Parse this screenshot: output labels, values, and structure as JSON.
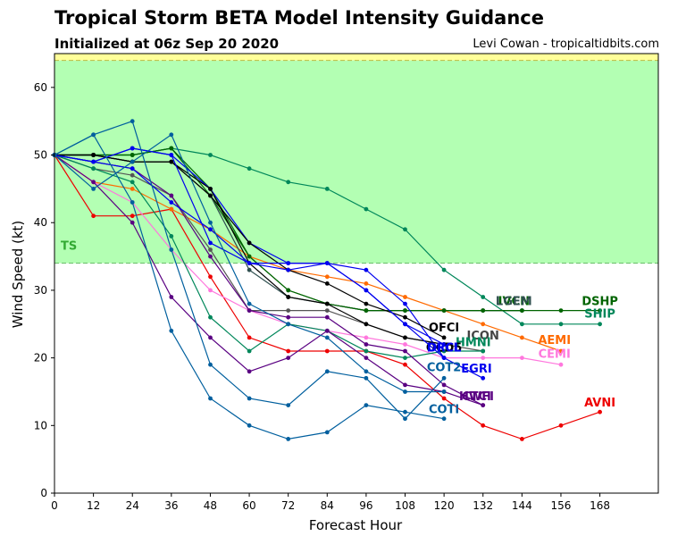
{
  "header": {
    "title": "Tropical Storm BETA Model Intensity Guidance",
    "subtitle": "Initialized at 06z Sep 20 2020",
    "credit": "Levi Cowan - tropicaltidbits.com"
  },
  "chart_data": {
    "type": "line",
    "xlabel": "Forecast Hour",
    "ylabel": "Wind Speed (kt)",
    "xlim": [
      0,
      186
    ],
    "ylim": [
      0,
      65
    ],
    "xticks": [
      0,
      12,
      24,
      36,
      48,
      60,
      72,
      84,
      96,
      108,
      120,
      132,
      144,
      156,
      168
    ],
    "yticks": [
      0,
      10,
      20,
      30,
      40,
      50,
      60
    ],
    "bands": [
      {
        "label": "TS",
        "from": 34,
        "to": 64,
        "color": "#b3ffb3",
        "edge": "#66bb66",
        "label_color": "#33aa33"
      },
      {
        "label": "",
        "from": 64,
        "to": 65,
        "color": "#ffff99",
        "edge": "#bbbb44",
        "label_color": "#999933"
      }
    ],
    "series": [
      {
        "name": "DSHP",
        "color": "#006400",
        "x": [
          0,
          12,
          24,
          36,
          48,
          60,
          72,
          84,
          96,
          108,
          120,
          132,
          144,
          156,
          168
        ],
        "y": [
          50,
          50,
          50,
          51,
          44,
          35,
          30,
          28,
          27,
          27,
          27,
          27,
          27,
          27,
          27
        ]
      },
      {
        "name": "SHIP",
        "color": "#00875a",
        "x": [
          0,
          12,
          24,
          36,
          48,
          60,
          72,
          84,
          96,
          108,
          120,
          132,
          144,
          156,
          168
        ],
        "y": [
          50,
          50,
          50,
          51,
          50,
          48,
          46,
          45,
          42,
          39,
          33,
          29,
          25,
          25,
          25
        ]
      },
      {
        "name": "AVNI",
        "color": "#ee0000",
        "x": [
          0,
          12,
          24,
          36,
          48,
          60,
          72,
          84,
          96,
          108,
          120,
          132,
          144,
          156,
          168
        ],
        "y": [
          50,
          41,
          41,
          42,
          32,
          23,
          21,
          21,
          21,
          19,
          14,
          10,
          8,
          10,
          12
        ]
      },
      {
        "name": "AEMI",
        "color": "#ff6a00",
        "x": [
          0,
          12,
          24,
          36,
          48,
          60,
          72,
          84,
          96,
          108,
          120,
          132,
          144,
          156
        ],
        "y": [
          50,
          46,
          45,
          42,
          39,
          35,
          33,
          32,
          31,
          29,
          27,
          25,
          23,
          21
        ]
      },
      {
        "name": "CEMI",
        "color": "#ff77dd",
        "x": [
          0,
          12,
          24,
          36,
          48,
          60,
          72,
          84,
          96,
          108,
          120,
          132,
          144,
          156
        ],
        "y": [
          50,
          46,
          43,
          36,
          30,
          27,
          25,
          24,
          23,
          22,
          20,
          20,
          20,
          19
        ]
      },
      {
        "name": "LGEM",
        "color": "#2f4f4f",
        "x": [
          0,
          12,
          24,
          36,
          48,
          60,
          72,
          84,
          96,
          108,
          120,
          132,
          144
        ],
        "y": [
          50,
          50,
          49,
          49,
          44,
          33,
          29,
          28,
          27,
          27,
          27,
          27,
          27
        ]
      },
      {
        "name": "IVCN",
        "color": "#006400",
        "x": [
          0,
          12,
          24,
          36,
          48,
          60,
          72,
          84,
          96,
          108,
          120,
          132,
          144
        ],
        "y": [
          50,
          50,
          50,
          51,
          45,
          35,
          30,
          28,
          27,
          27,
          27,
          27,
          27
        ]
      },
      {
        "name": "ICON",
        "color": "#555555",
        "x": [
          0,
          12,
          24,
          36,
          48,
          60,
          72,
          84,
          96,
          108,
          120,
          132
        ],
        "y": [
          50,
          48,
          47,
          44,
          36,
          27,
          27,
          27,
          25,
          23,
          22,
          21
        ]
      },
      {
        "name": "HMNI",
        "color": "#00875a",
        "x": [
          0,
          12,
          24,
          36,
          48,
          60,
          72,
          84,
          96,
          108,
          120,
          132
        ],
        "y": [
          50,
          48,
          46,
          38,
          26,
          21,
          25,
          24,
          21,
          20,
          21,
          21
        ]
      },
      {
        "name": "EGRI",
        "color": "#0000ee",
        "x": [
          0,
          12,
          24,
          36,
          48,
          60,
          72,
          84,
          96,
          108,
          120,
          132
        ],
        "y": [
          50,
          49,
          51,
          50,
          45,
          37,
          34,
          34,
          33,
          28,
          20,
          17
        ]
      },
      {
        "name": "HWFI",
        "color": "#5a0082",
        "x": [
          0,
          12,
          24,
          36,
          48,
          60,
          72,
          84,
          96,
          108,
          120,
          132
        ],
        "y": [
          50,
          46,
          40,
          29,
          23,
          18,
          20,
          24,
          20,
          16,
          15,
          13
        ]
      },
      {
        "name": "CTCI",
        "color": "#5a0082",
        "x": [
          0,
          12,
          24,
          36,
          48,
          60,
          72,
          84,
          96,
          108,
          120,
          132
        ],
        "y": [
          50,
          49,
          48,
          44,
          35,
          27,
          26,
          26,
          22,
          21,
          16,
          13
        ]
      },
      {
        "name": "OFCI",
        "color": "#000000",
        "x": [
          0,
          12,
          24,
          36,
          48,
          60,
          72,
          84,
          96,
          108,
          120
        ],
        "y": [
          50,
          50,
          49,
          49,
          44,
          37,
          33,
          31,
          28,
          26,
          23
        ]
      },
      {
        "name": "OCD5",
        "color": "#000000",
        "x": [
          0,
          12,
          24,
          36,
          48,
          60,
          72,
          84,
          96,
          108,
          120
        ],
        "y": [
          50,
          50,
          49,
          49,
          45,
          34,
          29,
          28,
          25,
          23,
          22
        ]
      },
      {
        "name": "DRCL",
        "color": "#0000ee",
        "x": [
          0,
          12,
          24,
          36,
          48,
          60,
          72,
          84,
          96,
          108,
          120
        ],
        "y": [
          50,
          49,
          51,
          50,
          37,
          34,
          34,
          34,
          30,
          25,
          22
        ]
      },
      {
        "name": "OFCL",
        "color": "#0000ee",
        "x": [
          0,
          12,
          24,
          36,
          48,
          60,
          72,
          84,
          96,
          108,
          120
        ],
        "y": [
          50,
          49,
          48,
          43,
          39,
          34,
          33,
          34,
          30,
          25,
          20
        ]
      },
      {
        "name": "COT2",
        "color": "#005f9e",
        "x": [
          0,
          12,
          24,
          36,
          48,
          60,
          72,
          84,
          96,
          108,
          120
        ],
        "y": [
          50,
          53,
          55,
          36,
          19,
          14,
          13,
          18,
          17,
          11,
          17
        ]
      },
      {
        "name": "COTI",
        "color": "#005f9e",
        "x": [
          0,
          12,
          24,
          36,
          48,
          60,
          72,
          84,
          96,
          108,
          120
        ],
        "y": [
          50,
          53,
          43,
          24,
          14,
          10,
          8,
          9,
          13,
          12,
          11
        ]
      },
      {
        "name": "",
        "color": "#005f9e",
        "x": [
          0,
          12,
          24,
          36,
          48,
          60,
          72,
          84,
          96,
          108,
          120
        ],
        "y": [
          50,
          45,
          49,
          53,
          40,
          28,
          25,
          23,
          18,
          15,
          15
        ]
      }
    ],
    "labels": [
      {
        "text": "DSHP",
        "x": 168,
        "y": 28.3,
        "color": "#006400"
      },
      {
        "text": "SHIP",
        "x": 168,
        "y": 26.4,
        "color": "#00875a"
      },
      {
        "text": "IVCN",
        "x": 141.5,
        "y": 28.3,
        "color": "#006400"
      },
      {
        "text": "LGEM",
        "x": 141.5,
        "y": 28.3,
        "color": "#2f4f4f"
      },
      {
        "text": "OFCI",
        "x": 120,
        "y": 24.4,
        "color": "#000000"
      },
      {
        "text": "ICON",
        "x": 132,
        "y": 23.2,
        "color": "#444444"
      },
      {
        "text": "HMNI",
        "x": 129,
        "y": 22.2,
        "color": "#00875a"
      },
      {
        "text": "OCD5",
        "x": 120,
        "y": 21.4,
        "color": "#000000"
      },
      {
        "text": "DRCL",
        "x": 120,
        "y": 21.4,
        "color": "#0000ee"
      },
      {
        "text": "OFCL",
        "x": 120,
        "y": 21.4,
        "color": "#0000ee"
      },
      {
        "text": "AEMI",
        "x": 154,
        "y": 22.5,
        "color": "#ff6a00"
      },
      {
        "text": "CEMI",
        "x": 154,
        "y": 20.5,
        "color": "#ff77dd"
      },
      {
        "text": "COT2",
        "x": 120,
        "y": 18.5,
        "color": "#005f9e"
      },
      {
        "text": "EGRI",
        "x": 130,
        "y": 18.3,
        "color": "#0000ee"
      },
      {
        "text": "HWFI",
        "x": 130,
        "y": 14.2,
        "color": "#5a0082"
      },
      {
        "text": "CTCI",
        "x": 130,
        "y": 14.2,
        "color": "#5a0082"
      },
      {
        "text": "AVNI",
        "x": 168,
        "y": 13.3,
        "color": "#ee0000"
      },
      {
        "text": "COTI",
        "x": 120,
        "y": 12.3,
        "color": "#005f9e"
      }
    ]
  }
}
